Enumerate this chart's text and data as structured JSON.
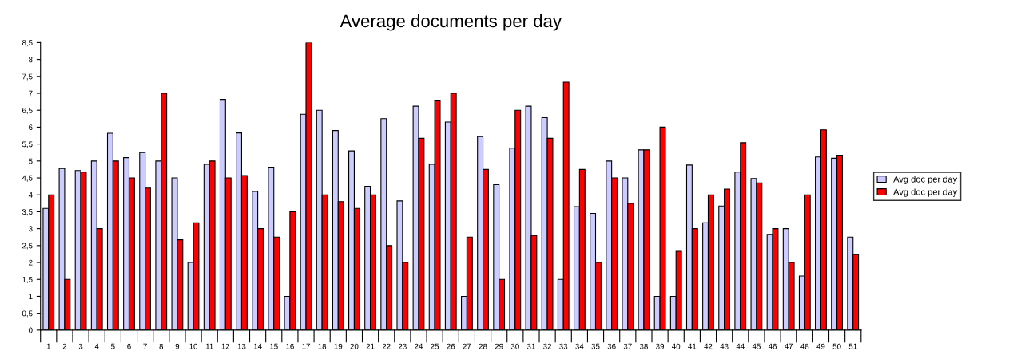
{
  "chart_data": {
    "type": "bar",
    "title": "Average documents per day",
    "categories": [
      "1",
      "2",
      "3",
      "4",
      "5",
      "6",
      "7",
      "8",
      "9",
      "10",
      "11",
      "12",
      "13",
      "14",
      "15",
      "16",
      "17",
      "18",
      "19",
      "20",
      "21",
      "22",
      "23",
      "24",
      "25",
      "26",
      "27",
      "28",
      "29",
      "30",
      "31",
      "32",
      "33",
      "34",
      "35",
      "36",
      "37",
      "38",
      "39",
      "40",
      "41",
      "42",
      "43",
      "44",
      "45",
      "46",
      "47",
      "48",
      "49",
      "50",
      "51"
    ],
    "series": [
      {
        "name": "Avg doc per day",
        "color": "#ccccff",
        "values": [
          3.6,
          4.78,
          4.72,
          5,
          5.82,
          5.1,
          5.25,
          5,
          4.5,
          2,
          4.9,
          6.82,
          5.83,
          4.1,
          4.82,
          1,
          6.38,
          6.5,
          5.9,
          5.3,
          4.25,
          6.25,
          3.82,
          6.62,
          4.9,
          6.15,
          1,
          5.72,
          4.3,
          5.38,
          6.62,
          6.28,
          1.5,
          3.65,
          3.45,
          5,
          4.5,
          5.33,
          1,
          1,
          4.88,
          3.17,
          3.67,
          4.67,
          4.48,
          2.83,
          3,
          1.6,
          5.12,
          5.08,
          2.75
        ]
      },
      {
        "name": "Avg doc per day",
        "color": "#ff0000",
        "values": [
          4,
          1.5,
          4.67,
          3,
          5,
          4.5,
          4.2,
          7,
          2.67,
          3.17,
          5,
          4.5,
          4.57,
          3,
          2.75,
          3.5,
          8.5,
          4,
          3.8,
          3.6,
          4,
          2.5,
          2,
          5.67,
          6.8,
          7,
          2.75,
          4.75,
          1.5,
          6.5,
          2.8,
          5.67,
          7.33,
          4.75,
          2,
          4.5,
          3.75,
          5.33,
          6,
          2.33,
          3,
          4,
          4.17,
          5.54,
          4.35,
          3,
          2,
          4,
          5.92,
          5.17,
          2.23
        ]
      }
    ],
    "ylim": [
      0,
      8.5
    ],
    "yticks": [
      {
        "value": 0,
        "label": "0"
      },
      {
        "value": 0.5,
        "label": "0,5"
      },
      {
        "value": 1,
        "label": "1"
      },
      {
        "value": 1.5,
        "label": "1,5"
      },
      {
        "value": 2,
        "label": "2"
      },
      {
        "value": 2.5,
        "label": "2,5"
      },
      {
        "value": 3,
        "label": "3"
      },
      {
        "value": 3.5,
        "label": "3,5"
      },
      {
        "value": 4,
        "label": "4"
      },
      {
        "value": 4.5,
        "label": "4,5"
      },
      {
        "value": 5,
        "label": "5"
      },
      {
        "value": 5.5,
        "label": "5,5"
      },
      {
        "value": 6,
        "label": "6"
      },
      {
        "value": 6.5,
        "label": "6,5"
      },
      {
        "value": 7,
        "label": "7"
      },
      {
        "value": 7.5,
        "label": "7,5"
      },
      {
        "value": 8,
        "label": "8"
      },
      {
        "value": 8.5,
        "label": "8,5"
      }
    ],
    "grid": false,
    "legend": "right"
  }
}
